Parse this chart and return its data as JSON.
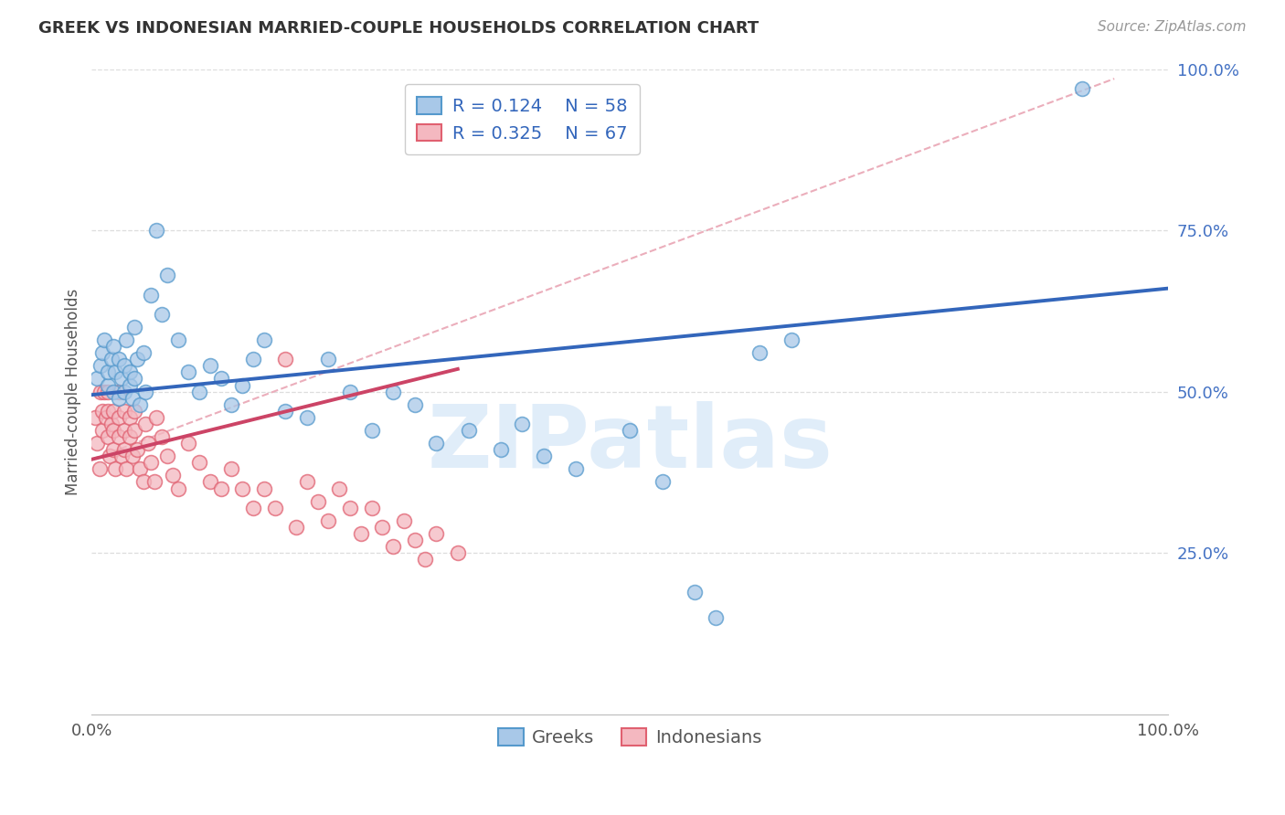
{
  "title": "GREEK VS INDONESIAN MARRIED-COUPLE HOUSEHOLDS CORRELATION CHART",
  "source": "Source: ZipAtlas.com",
  "ylabel": "Married-couple Households",
  "xlim": [
    0.0,
    1.0
  ],
  "ylim": [
    0.0,
    1.0
  ],
  "ytick_vals": [
    0.25,
    0.5,
    0.75,
    1.0
  ],
  "ytick_labels": [
    "25.0%",
    "50.0%",
    "75.0%",
    "100.0%"
  ],
  "xtick_vals": [
    0.0,
    1.0
  ],
  "xtick_labels": [
    "0.0%",
    "100.0%"
  ],
  "greek_R": 0.124,
  "greek_N": 58,
  "indonesian_R": 0.325,
  "indonesian_N": 67,
  "greek_color_fill": "#a8c8e8",
  "greek_color_edge": "#5599cc",
  "indonesian_color_fill": "#f4b8c0",
  "indonesian_color_edge": "#e06070",
  "greek_line_color": "#3366bb",
  "indonesian_line_color": "#cc4466",
  "dash_line_color": "#e8a0b0",
  "watermark": "ZIPatlas",
  "watermark_color": "#c8dff5",
  "background_color": "#ffffff",
  "greek_x": [
    0.005,
    0.008,
    0.01,
    0.012,
    0.015,
    0.015,
    0.018,
    0.02,
    0.02,
    0.022,
    0.025,
    0.025,
    0.028,
    0.03,
    0.03,
    0.032,
    0.035,
    0.035,
    0.038,
    0.04,
    0.04,
    0.042,
    0.045,
    0.048,
    0.05,
    0.055,
    0.06,
    0.065,
    0.07,
    0.08,
    0.09,
    0.1,
    0.11,
    0.12,
    0.13,
    0.14,
    0.15,
    0.16,
    0.18,
    0.2,
    0.22,
    0.24,
    0.26,
    0.28,
    0.3,
    0.32,
    0.35,
    0.38,
    0.4,
    0.42,
    0.45,
    0.5,
    0.53,
    0.56,
    0.58,
    0.62,
    0.65,
    0.92
  ],
  "greek_y": [
    0.52,
    0.54,
    0.56,
    0.58,
    0.51,
    0.53,
    0.55,
    0.5,
    0.57,
    0.53,
    0.49,
    0.55,
    0.52,
    0.5,
    0.54,
    0.58,
    0.51,
    0.53,
    0.49,
    0.52,
    0.6,
    0.55,
    0.48,
    0.56,
    0.5,
    0.65,
    0.75,
    0.62,
    0.68,
    0.58,
    0.53,
    0.5,
    0.54,
    0.52,
    0.48,
    0.51,
    0.55,
    0.58,
    0.47,
    0.46,
    0.55,
    0.5,
    0.44,
    0.5,
    0.48,
    0.42,
    0.44,
    0.41,
    0.45,
    0.4,
    0.38,
    0.44,
    0.36,
    0.19,
    0.15,
    0.56,
    0.58,
    0.97
  ],
  "indonesian_x": [
    0.003,
    0.005,
    0.007,
    0.008,
    0.01,
    0.01,
    0.012,
    0.013,
    0.015,
    0.015,
    0.015,
    0.017,
    0.018,
    0.02,
    0.02,
    0.02,
    0.022,
    0.025,
    0.025,
    0.025,
    0.028,
    0.03,
    0.03,
    0.03,
    0.032,
    0.035,
    0.035,
    0.038,
    0.04,
    0.04,
    0.042,
    0.045,
    0.048,
    0.05,
    0.052,
    0.055,
    0.058,
    0.06,
    0.065,
    0.07,
    0.075,
    0.08,
    0.09,
    0.1,
    0.11,
    0.12,
    0.13,
    0.14,
    0.15,
    0.16,
    0.17,
    0.18,
    0.19,
    0.2,
    0.21,
    0.22,
    0.23,
    0.24,
    0.25,
    0.26,
    0.27,
    0.28,
    0.29,
    0.3,
    0.31,
    0.32,
    0.34
  ],
  "indonesian_y": [
    0.46,
    0.42,
    0.38,
    0.5,
    0.47,
    0.44,
    0.5,
    0.46,
    0.43,
    0.47,
    0.5,
    0.4,
    0.45,
    0.47,
    0.44,
    0.41,
    0.38,
    0.5,
    0.46,
    0.43,
    0.4,
    0.47,
    0.44,
    0.41,
    0.38,
    0.46,
    0.43,
    0.4,
    0.47,
    0.44,
    0.41,
    0.38,
    0.36,
    0.45,
    0.42,
    0.39,
    0.36,
    0.46,
    0.43,
    0.4,
    0.37,
    0.35,
    0.42,
    0.39,
    0.36,
    0.35,
    0.38,
    0.35,
    0.32,
    0.35,
    0.32,
    0.55,
    0.29,
    0.36,
    0.33,
    0.3,
    0.35,
    0.32,
    0.28,
    0.32,
    0.29,
    0.26,
    0.3,
    0.27,
    0.24,
    0.28,
    0.25
  ],
  "greek_line_x0": 0.0,
  "greek_line_y0": 0.495,
  "greek_line_x1": 1.0,
  "greek_line_y1": 0.66,
  "indo_line_x0": 0.0,
  "indo_line_y0": 0.395,
  "indo_line_x1": 0.34,
  "indo_line_y1": 0.535,
  "dash_line_x0": 0.0,
  "dash_line_y0": 0.395,
  "dash_line_x1": 0.95,
  "dash_line_y1": 0.985,
  "legend_R_text_color": "#3366bb",
  "legend_N_text_color": "#cc3333",
  "title_fontsize": 13,
  "source_fontsize": 11,
  "axis_label_fontsize": 12,
  "tick_fontsize": 13,
  "legend_fontsize": 14,
  "watermark_fontsize": 70
}
